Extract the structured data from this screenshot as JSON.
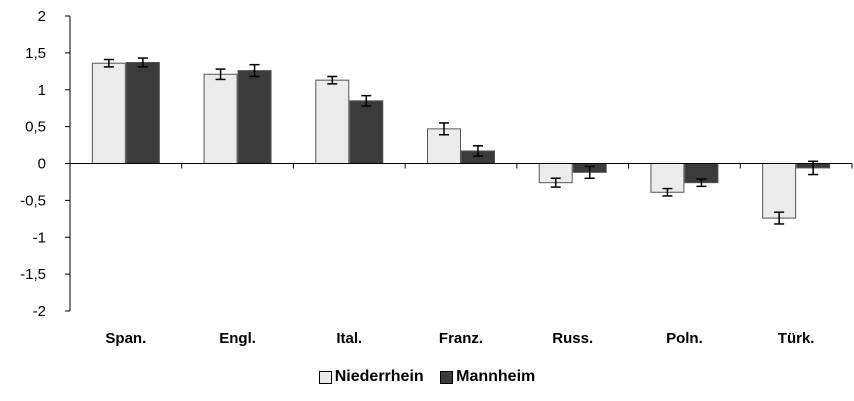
{
  "chart_data": {
    "type": "bar",
    "categories": [
      "Span.",
      "Engl.",
      "Ital.",
      "Franz.",
      "Russ.",
      "Poln.",
      "Türk."
    ],
    "series": [
      {
        "name": "Niederrhein",
        "color": "#ebebeb",
        "values": [
          1.36,
          1.21,
          1.13,
          0.47,
          -0.26,
          -0.39,
          -0.74
        ],
        "errors": [
          0.05,
          0.07,
          0.05,
          0.08,
          0.06,
          0.05,
          0.08
        ]
      },
      {
        "name": "Mannheim",
        "color": "#3b3b3b",
        "values": [
          1.37,
          1.26,
          0.85,
          0.17,
          -0.12,
          -0.26,
          -0.06
        ],
        "errors": [
          0.06,
          0.08,
          0.07,
          0.07,
          0.08,
          0.05,
          0.09
        ]
      }
    ],
    "yticks": [
      "2",
      "1,5",
      "1",
      "0,5",
      "0",
      "-0,5",
      "-1",
      "-1,5",
      "-2"
    ],
    "ylim": [
      -2,
      2
    ],
    "grid": false,
    "legend_position": "bottom"
  }
}
